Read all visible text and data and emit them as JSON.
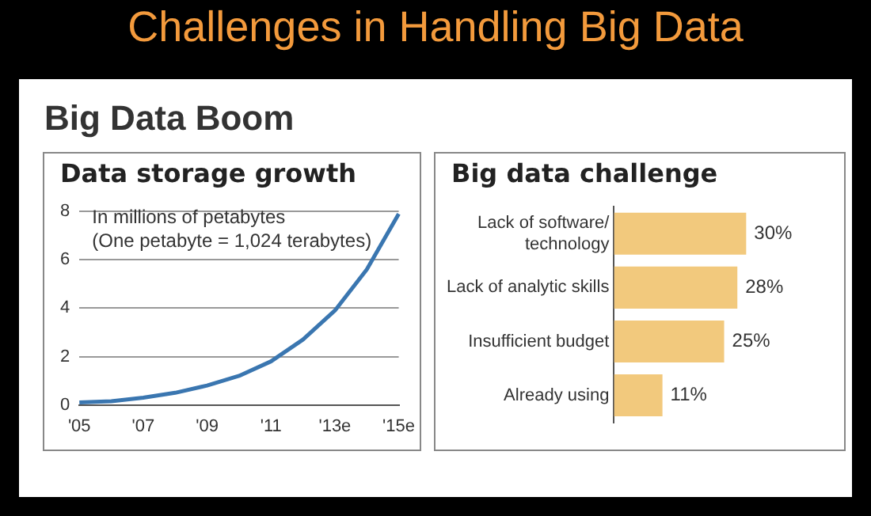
{
  "chart_data": [
    {
      "type": "other",
      "title": "Challenges in Handling Big Data",
      "subtitle": "Big Data Boom"
    },
    {
      "type": "line",
      "title": "Data storage growth",
      "categories": [
        "'05",
        null,
        "'07",
        null,
        "'09",
        null,
        "'11",
        null,
        "'13e",
        null,
        "'15e"
      ],
      "series": [
        {
          "color": "#3a76b0",
          "values": [
            0.1,
            0.15,
            0.3,
            0.5,
            0.8,
            1.2,
            1.8,
            2.7,
            3.9,
            5.6,
            7.9
          ]
        }
      ],
      "ylim": [
        0,
        8
      ],
      "yticks": [
        0,
        2,
        4,
        6,
        8
      ],
      "grid": "y",
      "legend": false,
      "marker": "none",
      "line_style": "solid",
      "annotations": [
        "In millions of petabytes",
        "(One petabyte = 1,024 terabytes)"
      ]
    },
    {
      "type": "bar",
      "orientation": "horizontal",
      "title": "Big data challenge",
      "categories": [
        "Lack of software/\ntechnology",
        "Lack of analytic skills",
        "Insufficient budget",
        "Already using"
      ],
      "values": [
        30,
        28,
        25,
        11
      ],
      "color": "#f2c97d",
      "value_labels": [
        "30%",
        "28%",
        "25%",
        "11%"
      ],
      "legend": false,
      "grid": false
    }
  ]
}
